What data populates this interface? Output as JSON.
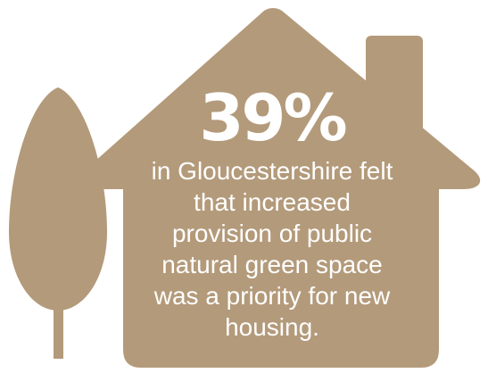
{
  "colors": {
    "shape": "#b39a7a",
    "text": "#ffffff",
    "background": "#ffffff"
  },
  "illustration": {
    "tree_icon": "tree-icon",
    "house_icon": "house-icon"
  },
  "stat": {
    "value": "39%",
    "text": "in Gloucestershire felt\nthat increased\nprovision of public\nnatural green space\nwas a priority for new\nhousing."
  }
}
